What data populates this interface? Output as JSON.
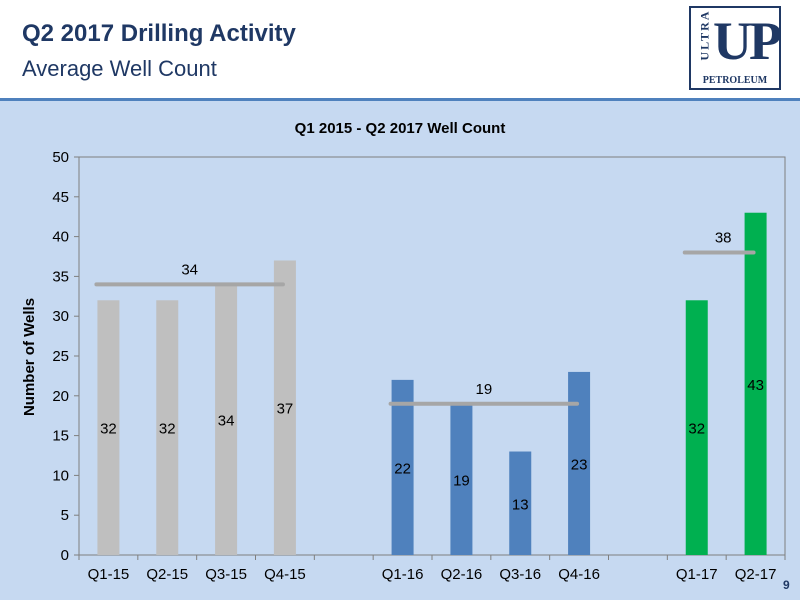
{
  "header": {
    "title": "Q2 2017 Drilling Activity",
    "subtitle": "Average Well Count",
    "logo": {
      "top_text": "ULTRA",
      "main_text": "UP",
      "bottom_text": "PETROLEUM"
    },
    "slide_number": "9"
  },
  "colors": {
    "header_text": "#1f3864",
    "background": "#c6d9f1",
    "series_2015": "#bfbfbf",
    "series_2016": "#4f81bd",
    "series_2017": "#00b050",
    "avg_line": "#a6a6a6"
  },
  "chart_data": {
    "type": "bar",
    "title": "Q1 2015 - Q2 2017 Well Count",
    "ylabel": "Number of Wells",
    "xlabel": "",
    "ylim": [
      0,
      50
    ],
    "yticks": [
      0,
      5,
      10,
      15,
      20,
      25,
      30,
      35,
      40,
      45,
      50
    ],
    "grid": false,
    "legend": "none",
    "categories": [
      "Q1-15",
      "Q2-15",
      "Q3-15",
      "Q4-15",
      "Q1-16",
      "Q2-16",
      "Q3-16",
      "Q4-16",
      "Q1-17",
      "Q2-17"
    ],
    "values": [
      32,
      32,
      34,
      37,
      22,
      19,
      13,
      23,
      32,
      43
    ],
    "groups": [
      {
        "year": "2015",
        "categories": [
          "Q1-15",
          "Q2-15",
          "Q3-15",
          "Q4-15"
        ],
        "values": [
          32,
          32,
          34,
          37
        ],
        "average": 34,
        "color": "#bfbfbf"
      },
      {
        "year": "2016",
        "categories": [
          "Q1-16",
          "Q2-16",
          "Q3-16",
          "Q4-16"
        ],
        "values": [
          22,
          19,
          13,
          23
        ],
        "average": 19,
        "color": "#4f81bd"
      },
      {
        "year": "2017",
        "categories": [
          "Q1-17",
          "Q2-17"
        ],
        "values": [
          32,
          43
        ],
        "average": 38,
        "color": "#00b050"
      }
    ]
  }
}
